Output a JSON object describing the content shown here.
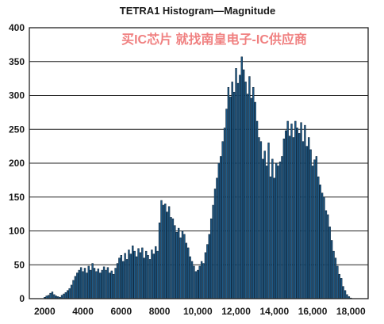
{
  "chart_data": {
    "type": "bar",
    "title": "TETRA1 Histogram—Magnitude",
    "watermark": "买IC芯片 就找南皇电子-IC供应商",
    "xlabel": "",
    "ylabel": "",
    "xlim": [
      1200,
      18900
    ],
    "ylim": [
      0,
      400
    ],
    "x_ticks": [
      2000,
      4000,
      6000,
      8000,
      10000,
      12000,
      14000,
      16000,
      18000
    ],
    "x_tick_labels": [
      "2000",
      "4000",
      "6000",
      "8000",
      "10,000",
      "12,000",
      "14,000",
      "16,000",
      "18,000"
    ],
    "y_ticks": [
      0,
      50,
      100,
      150,
      200,
      250,
      300,
      350,
      400
    ],
    "y_tick_labels": [
      "0",
      "50",
      "100",
      "150",
      "200",
      "250",
      "300",
      "350",
      "400"
    ],
    "grid": true,
    "bar_color": "#1f5a86",
    "bar_edge_color": "#0a1f33",
    "x": [
      2000,
      2100,
      2200,
      2300,
      2400,
      2500,
      2600,
      2700,
      2800,
      2900,
      3000,
      3100,
      3200,
      3300,
      3400,
      3500,
      3600,
      3700,
      3800,
      3900,
      4000,
      4100,
      4200,
      4300,
      4400,
      4500,
      4600,
      4700,
      4800,
      4900,
      5000,
      5100,
      5200,
      5300,
      5400,
      5500,
      5600,
      5700,
      5800,
      5900,
      6000,
      6100,
      6200,
      6300,
      6400,
      6500,
      6600,
      6700,
      6800,
      6900,
      7000,
      7100,
      7200,
      7300,
      7400,
      7500,
      7600,
      7700,
      7800,
      7900,
      8000,
      8100,
      8200,
      8300,
      8400,
      8500,
      8600,
      8700,
      8800,
      8900,
      9000,
      9100,
      9200,
      9300,
      9400,
      9500,
      9600,
      9700,
      9800,
      9900,
      10000,
      10100,
      10200,
      10300,
      10400,
      10500,
      10600,
      10700,
      10800,
      10900,
      11000,
      11100,
      11200,
      11300,
      11400,
      11500,
      11600,
      11700,
      11800,
      11900,
      12000,
      12100,
      12200,
      12300,
      12400,
      12500,
      12600,
      12700,
      12800,
      12900,
      13000,
      13100,
      13200,
      13300,
      13400,
      13500,
      13600,
      13700,
      13800,
      13900,
      14000,
      14100,
      14200,
      14300,
      14400,
      14500,
      14600,
      14700,
      14800,
      14900,
      15000,
      15100,
      15200,
      15300,
      15400,
      15500,
      15600,
      15700,
      15800,
      15900,
      16000,
      16100,
      16200,
      16300,
      16400,
      16500,
      16600,
      16700,
      16800,
      16900,
      17000,
      17100,
      17200,
      17300,
      17400,
      17500,
      17600,
      17700,
      17800,
      17900,
      18000
    ],
    "values": [
      2,
      4,
      5,
      8,
      10,
      6,
      4,
      3,
      2,
      5,
      7,
      9,
      12,
      15,
      20,
      27,
      33,
      38,
      42,
      46,
      40,
      45,
      38,
      48,
      42,
      52,
      45,
      40,
      44,
      38,
      42,
      47,
      42,
      46,
      38,
      41,
      36,
      45,
      52,
      60,
      64,
      55,
      67,
      58,
      72,
      66,
      78,
      70,
      62,
      74,
      68,
      75,
      60,
      70,
      64,
      58,
      72,
      66,
      77,
      70,
      112,
      145,
      138,
      140,
      128,
      136,
      120,
      118,
      108,
      98,
      104,
      90,
      100,
      95,
      82,
      75,
      62,
      55,
      48,
      40,
      42,
      48,
      55,
      52,
      68,
      80,
      95,
      118,
      138,
      162,
      178,
      200,
      210,
      232,
      252,
      280,
      312,
      298,
      320,
      305,
      340,
      318,
      330,
      357,
      338,
      320,
      302,
      328,
      296,
      312,
      290,
      262,
      238,
      232,
      206,
      218,
      196,
      230,
      180,
      206,
      178,
      200,
      196,
      202,
      210,
      236,
      248,
      262,
      240,
      258,
      238,
      262,
      252,
      244,
      260,
      232,
      256,
      225,
      238,
      220,
      196,
      205,
      210,
      180,
      168,
      156,
      150,
      130,
      124,
      106,
      86,
      70,
      60,
      48,
      36,
      30,
      18,
      12,
      6,
      3,
      1
    ]
  }
}
